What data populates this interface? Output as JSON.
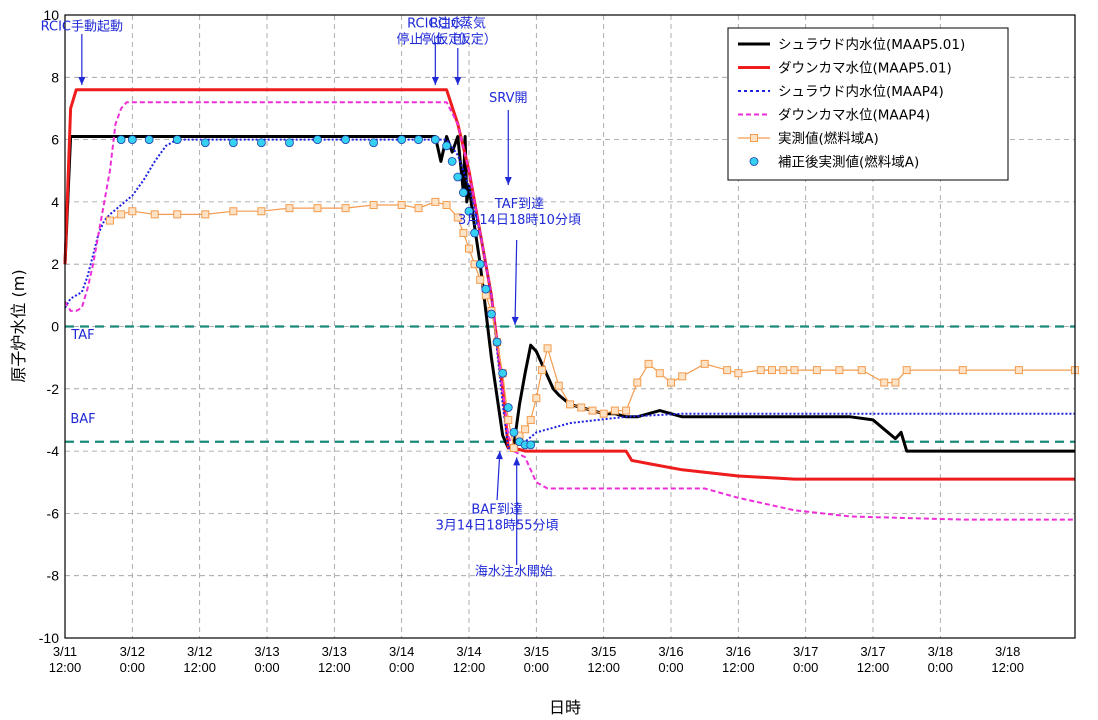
{
  "chart_data": {
    "type": "line",
    "title": "",
    "xlabel": "日時",
    "ylabel": "原子炉水位 (m)",
    "ylim": [
      -10,
      10
    ],
    "y_ticks": [
      "10",
      "8",
      "6",
      "4",
      "2",
      "0",
      "-2",
      "-4",
      "-6",
      "-8",
      "-10"
    ],
    "x_ticks": [
      {
        "date": "3/11",
        "time": "12:00"
      },
      {
        "date": "3/12",
        "time": "0:00"
      },
      {
        "date": "3/12",
        "time": "12:00"
      },
      {
        "date": "3/13",
        "time": "0:00"
      },
      {
        "date": "3/13",
        "time": "12:00"
      },
      {
        "date": "3/14",
        "time": "0:00"
      },
      {
        "date": "3/14",
        "time": "12:00"
      },
      {
        "date": "3/15",
        "time": "0:00"
      },
      {
        "date": "3/15",
        "time": "12:00"
      },
      {
        "date": "3/16",
        "time": "0:00"
      },
      {
        "date": "3/16",
        "time": "12:00"
      },
      {
        "date": "3/17",
        "time": "0:00"
      },
      {
        "date": "3/17",
        "time": "12:00"
      },
      {
        "date": "3/18",
        "time": "0:00"
      },
      {
        "date": "3/18",
        "time": "12:00"
      }
    ],
    "x_unit": "hours after 3/11 12:00",
    "grid": true,
    "legend_position": "top-right",
    "reference_lines": [
      {
        "label": "TAF",
        "y": 0,
        "color": "#1a8a7a"
      },
      {
        "label": "BAF",
        "y": -3.7,
        "color": "#1a8a7a"
      }
    ],
    "series": [
      {
        "name": "シュラウド内水位(MAAP5.01)",
        "color": "#000000",
        "style": "solid",
        "x": [
          0,
          1,
          2,
          3,
          4,
          5,
          6,
          8,
          12,
          20,
          30,
          40,
          50,
          60,
          66,
          67,
          68,
          69,
          70,
          71,
          71.3,
          71.6,
          72,
          73,
          74,
          75,
          76,
          78,
          79,
          80,
          81,
          82,
          83,
          84,
          85,
          86,
          87,
          88,
          90,
          92,
          94,
          96,
          98,
          100,
          102,
          104,
          106,
          108,
          110,
          112,
          114,
          116,
          120,
          130,
          140,
          144,
          146,
          148,
          149,
          150,
          152,
          158,
          168,
          180
        ],
        "y": [
          2.0,
          6.1,
          6.1,
          6.1,
          6.1,
          6.1,
          6.1,
          6.1,
          6.1,
          6.1,
          6.1,
          6.1,
          6.1,
          6.1,
          6.1,
          5.3,
          6.1,
          5.6,
          6.1,
          4.3,
          6.1,
          4.0,
          4.5,
          3.2,
          2.0,
          0.5,
          -1.0,
          -3.5,
          -3.9,
          -3.8,
          -2.5,
          -1.5,
          -0.6,
          -0.8,
          -1.2,
          -1.6,
          -2.0,
          -2.2,
          -2.5,
          -2.6,
          -2.7,
          -2.8,
          -2.8,
          -2.9,
          -2.9,
          -2.8,
          -2.7,
          -2.8,
          -2.9,
          -2.9,
          -2.9,
          -2.9,
          -2.9,
          -2.9,
          -2.9,
          -3.0,
          -3.3,
          -3.6,
          -3.4,
          -4.0,
          -4.0,
          -4.0,
          -4.0,
          -4.0
        ]
      },
      {
        "name": "ダウンカマ水位(MAAP5.01)",
        "color": "#ee1c1c",
        "style": "solid",
        "x": [
          0,
          1,
          2,
          3,
          5,
          8,
          20,
          40,
          60,
          66,
          68,
          70,
          72,
          74,
          76,
          78,
          79,
          80,
          82,
          84,
          90,
          96,
          100,
          101,
          104,
          110,
          120,
          130,
          140,
          150,
          160,
          170,
          180
        ],
        "y": [
          2.0,
          7.0,
          7.6,
          7.6,
          7.6,
          7.6,
          7.6,
          7.6,
          7.6,
          7.6,
          7.6,
          6.5,
          5.0,
          3.0,
          1.0,
          -2.0,
          -3.9,
          -3.9,
          -4.0,
          -4.0,
          -4.0,
          -4.0,
          -4.0,
          -4.3,
          -4.4,
          -4.6,
          -4.8,
          -4.9,
          -4.9,
          -4.9,
          -4.9,
          -4.9,
          -4.9
        ]
      },
      {
        "name": "シュラウド内水位(MAAP4)",
        "color": "#1d21e0",
        "style": "dotted",
        "x": [
          0,
          1,
          2,
          3,
          4,
          5,
          6,
          7,
          8,
          10,
          12,
          14,
          16,
          18,
          20,
          30,
          40,
          50,
          60,
          66,
          68,
          70,
          72,
          74,
          76,
          78,
          79,
          80,
          82,
          84,
          86,
          88,
          90,
          95,
          100,
          110,
          120,
          130,
          140,
          150,
          160,
          170,
          180
        ],
        "y": [
          0.6,
          0.9,
          1.0,
          1.1,
          1.6,
          2.3,
          3.0,
          3.4,
          3.6,
          3.9,
          4.2,
          4.7,
          5.3,
          5.8,
          6.0,
          6.0,
          6.0,
          6.0,
          6.0,
          6.0,
          6.0,
          5.5,
          4.5,
          3.0,
          1.0,
          -2.5,
          -3.9,
          -3.9,
          -3.7,
          -3.4,
          -3.3,
          -3.2,
          -3.1,
          -3.0,
          -2.9,
          -2.8,
          -2.8,
          -2.8,
          -2.8,
          -2.8,
          -2.8,
          -2.8,
          -2.8
        ]
      },
      {
        "name": "ダウンカマ水位(MAAP4)",
        "color": "#ee2ed8",
        "style": "dashed",
        "x": [
          0,
          1,
          2,
          3,
          4,
          5,
          6,
          8,
          9,
          10,
          11,
          20,
          30,
          40,
          50,
          60,
          66,
          68,
          70,
          72,
          74,
          76,
          78,
          79,
          80,
          82,
          84,
          86,
          88,
          100,
          110,
          114,
          120,
          130,
          140,
          160,
          180
        ],
        "y": [
          0.8,
          0.5,
          0.5,
          0.6,
          1.2,
          2.0,
          3.0,
          5.0,
          6.5,
          7.0,
          7.2,
          7.2,
          7.2,
          7.2,
          7.2,
          7.2,
          7.2,
          7.2,
          6.5,
          5.0,
          3.0,
          1.0,
          -2.0,
          -3.5,
          -4.0,
          -4.2,
          -5.0,
          -5.2,
          -5.2,
          -5.2,
          -5.2,
          -5.2,
          -5.5,
          -5.9,
          -6.1,
          -6.2,
          -6.2
        ]
      },
      {
        "name": "実測値(燃料域A)",
        "color": "#f39c4f",
        "style": "marker-square",
        "x": [
          8,
          10,
          12,
          16,
          20,
          25,
          30,
          35,
          40,
          45,
          50,
          55,
          60,
          63,
          66,
          68,
          70,
          71,
          72,
          73,
          74,
          75,
          76,
          77,
          78,
          79,
          80,
          81,
          82,
          83,
          84,
          85,
          86,
          88,
          90,
          92,
          94,
          96,
          98,
          100,
          102,
          104,
          106,
          108,
          110,
          114,
          118,
          120,
          124,
          126,
          128,
          130,
          134,
          138,
          142,
          146,
          148,
          150,
          160,
          170,
          180
        ],
        "y": [
          3.4,
          3.6,
          3.7,
          3.6,
          3.6,
          3.6,
          3.7,
          3.7,
          3.8,
          3.8,
          3.8,
          3.9,
          3.9,
          3.8,
          4.0,
          3.9,
          3.5,
          3.0,
          2.5,
          2.0,
          1.5,
          1.0,
          0.5,
          -0.5,
          -1.5,
          -3.0,
          -3.9,
          -3.5,
          -3.3,
          -3.0,
          -2.3,
          -1.4,
          -0.7,
          -1.9,
          -2.5,
          -2.6,
          -2.7,
          -2.8,
          -2.7,
          -2.7,
          -1.8,
          -1.2,
          -1.5,
          -1.8,
          -1.6,
          -1.2,
          -1.4,
          -1.5,
          -1.4,
          -1.4,
          -1.4,
          -1.4,
          -1.4,
          -1.4,
          -1.4,
          -1.8,
          -1.8,
          -1.4,
          -1.4,
          -1.4,
          -1.4
        ]
      },
      {
        "name": "補正後実測値(燃料域A)",
        "color": "#36d0f2",
        "style": "marker-circle",
        "x": [
          10,
          12,
          15,
          20,
          25,
          30,
          35,
          40,
          45,
          50,
          55,
          60,
          63,
          66,
          68,
          69,
          70,
          71,
          72,
          73,
          74,
          75,
          76,
          77,
          78,
          79,
          80,
          81,
          82,
          83
        ],
        "y": [
          6.0,
          6.0,
          6.0,
          6.0,
          5.9,
          5.9,
          5.9,
          5.9,
          6.0,
          6.0,
          5.9,
          6.0,
          6.0,
          6.0,
          5.8,
          5.3,
          4.8,
          4.3,
          3.7,
          3.0,
          2.0,
          1.2,
          0.4,
          -0.5,
          -1.5,
          -2.6,
          -3.4,
          -3.7,
          -3.8,
          -3.8
        ]
      }
    ],
    "annotations": [
      {
        "lines": [
          "RCIC手動起動"
        ],
        "x": 3,
        "y": 9.5
      },
      {
        "lines": [
          "RCIC注水",
          "停止（仮定）"
        ],
        "x": 66,
        "y": 9.6
      },
      {
        "lines": [
          "RCIC蒸気",
          "停止（仮定）"
        ],
        "x": 70,
        "y": 9.6
      },
      {
        "lines": [
          "SRV開"
        ],
        "x": 79,
        "y": 7.2
      },
      {
        "lines": [
          "TAF到達",
          "3月14日18時10分頃"
        ],
        "x": 81,
        "y": 3.8
      },
      {
        "lines": [
          "BAF到達",
          "3月14日18時55分頃"
        ],
        "x": 77,
        "y": -6.0
      },
      {
        "lines": [
          "海水注水開始"
        ],
        "x": 80,
        "y": -8.0
      },
      {
        "lines": [
          "TAF"
        ],
        "x": 0,
        "y": -0.4
      },
      {
        "lines": [
          "BAF"
        ],
        "x": 0,
        "y": -3.1
      }
    ]
  }
}
